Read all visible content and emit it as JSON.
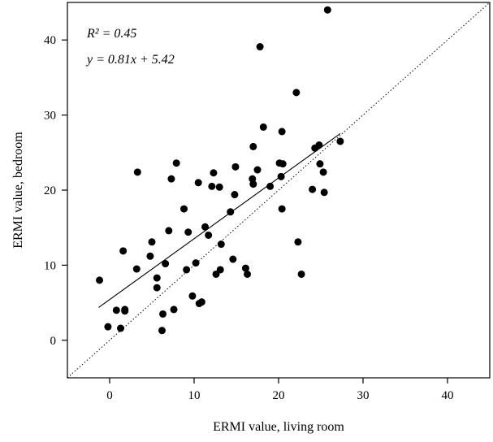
{
  "chart_data": {
    "type": "scatter",
    "xlabel": "ERMI value, living room",
    "ylabel": "ERMI value, bedroom",
    "xlim": [
      -5,
      45
    ],
    "ylim": [
      -5,
      45
    ],
    "xticks": [
      0,
      10,
      20,
      30,
      40
    ],
    "yticks": [
      0,
      10,
      20,
      30,
      40
    ],
    "grid": false,
    "annotations": {
      "r2_text": "R² = 0.45",
      "equation_text": "y = 0.81x + 5.42"
    },
    "regression": {
      "slope": 0.81,
      "intercept": 5.42,
      "x_range": [
        -1.3,
        27.3
      ]
    },
    "reference_line": {
      "style": "dotted",
      "description": "y = x"
    },
    "colors": {
      "points": "#000000",
      "axes": "#000000"
    },
    "points": [
      [
        -1.2,
        8.0
      ],
      [
        -0.2,
        1.8
      ],
      [
        0.8,
        4.0
      ],
      [
        1.3,
        1.6
      ],
      [
        1.6,
        11.9
      ],
      [
        1.8,
        4.1
      ],
      [
        1.8,
        3.9
      ],
      [
        3.2,
        9.5
      ],
      [
        3.3,
        22.4
      ],
      [
        4.8,
        11.2
      ],
      [
        5.0,
        13.1
      ],
      [
        5.6,
        8.3
      ],
      [
        5.6,
        7.0
      ],
      [
        6.3,
        3.5
      ],
      [
        6.2,
        1.3
      ],
      [
        6.6,
        10.2
      ],
      [
        7.0,
        14.6
      ],
      [
        7.3,
        21.5
      ],
      [
        7.6,
        4.1
      ],
      [
        7.9,
        23.6
      ],
      [
        8.8,
        17.5
      ],
      [
        9.1,
        9.4
      ],
      [
        9.3,
        14.4
      ],
      [
        9.8,
        5.9
      ],
      [
        10.2,
        10.3
      ],
      [
        10.5,
        21.0
      ],
      [
        10.6,
        4.9
      ],
      [
        10.9,
        5.1
      ],
      [
        11.3,
        15.1
      ],
      [
        11.7,
        14.0
      ],
      [
        12.1,
        20.5
      ],
      [
        12.3,
        22.3
      ],
      [
        12.6,
        8.8
      ],
      [
        13.0,
        20.4
      ],
      [
        13.1,
        9.4
      ],
      [
        13.2,
        12.8
      ],
      [
        14.3,
        17.1
      ],
      [
        14.6,
        10.8
      ],
      [
        14.8,
        19.4
      ],
      [
        14.9,
        23.1
      ],
      [
        16.1,
        9.6
      ],
      [
        16.3,
        8.8
      ],
      [
        16.9,
        21.5
      ],
      [
        17.0,
        25.8
      ],
      [
        17.0,
        20.8
      ],
      [
        17.5,
        22.7
      ],
      [
        17.8,
        39.1
      ],
      [
        18.2,
        28.4
      ],
      [
        19.0,
        20.5
      ],
      [
        20.1,
        23.6
      ],
      [
        20.3,
        21.8
      ],
      [
        20.4,
        27.8
      ],
      [
        20.4,
        17.5
      ],
      [
        20.5,
        23.5
      ],
      [
        22.1,
        33.0
      ],
      [
        22.3,
        13.1
      ],
      [
        22.7,
        8.8
      ],
      [
        24.0,
        20.1
      ],
      [
        24.3,
        25.6
      ],
      [
        24.8,
        26.0
      ],
      [
        24.9,
        23.5
      ],
      [
        25.3,
        22.4
      ],
      [
        25.4,
        19.7
      ],
      [
        25.8,
        44.0
      ],
      [
        27.3,
        26.5
      ]
    ]
  }
}
